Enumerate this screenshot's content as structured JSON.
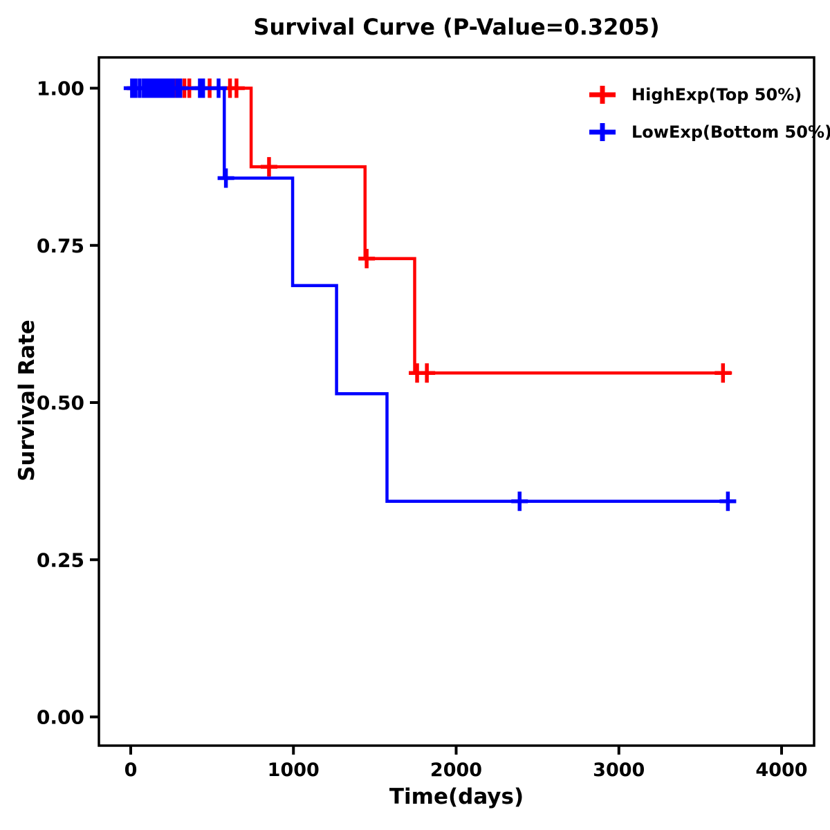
{
  "chart_data": {
    "type": "line",
    "subtype": "kaplan-meier-survival-step",
    "title": "Survival Curve (P-Value=0.3205)",
    "p_value": 0.3205,
    "xlabel": "Time(days)",
    "ylabel": "Survival Rate",
    "xlim": [
      0,
      4000
    ],
    "ylim": [
      0.0,
      1.0
    ],
    "grid": false,
    "background": "#ffffff",
    "axis_color": "#000000",
    "legend_position": "top-right-inside",
    "xticks": [
      {
        "value": 0,
        "label": "0"
      },
      {
        "value": 1000,
        "label": "1000"
      },
      {
        "value": 2000,
        "label": "2000"
      },
      {
        "value": 3000,
        "label": "3000"
      },
      {
        "value": 4000,
        "label": "4000"
      }
    ],
    "yticks": [
      {
        "value": 0.0,
        "label": "0.00"
      },
      {
        "value": 0.25,
        "label": "0.25"
      },
      {
        "value": 0.5,
        "label": "0.50"
      },
      {
        "value": 0.75,
        "label": "0.75"
      },
      {
        "value": 1.0,
        "label": "1.00"
      }
    ],
    "series": [
      {
        "name": "HighExp(Top 50%)",
        "color": "#ff0000",
        "steps": [
          [
            0,
            1.0
          ],
          [
            740,
            0.875
          ],
          [
            1440,
            0.729
          ],
          [
            1745,
            0.547
          ]
        ],
        "end_time": 3695,
        "censor_marks": [
          [
            25,
            1.0
          ],
          [
            90,
            1.0
          ],
          [
            130,
            1.0
          ],
          [
            175,
            1.0
          ],
          [
            210,
            1.0
          ],
          [
            275,
            1.0
          ],
          [
            330,
            1.0
          ],
          [
            360,
            1.0
          ],
          [
            485,
            1.0
          ],
          [
            610,
            1.0
          ],
          [
            650,
            1.0
          ],
          [
            850,
            0.875
          ],
          [
            1450,
            0.729
          ],
          [
            1760,
            0.547
          ],
          [
            1820,
            0.547
          ],
          [
            3640,
            0.547
          ]
        ]
      },
      {
        "name": "LowExp(Bottom 50%)",
        "color": "#0000ff",
        "steps": [
          [
            0,
            1.0
          ],
          [
            575,
            0.857
          ],
          [
            995,
            0.686
          ],
          [
            1265,
            0.514
          ],
          [
            1575,
            0.343
          ]
        ],
        "end_time": 3720,
        "censor_marks": [
          [
            8,
            1.0
          ],
          [
            30,
            1.0
          ],
          [
            55,
            1.0
          ],
          [
            80,
            1.0
          ],
          [
            100,
            1.0
          ],
          [
            120,
            1.0
          ],
          [
            140,
            1.0
          ],
          [
            160,
            1.0
          ],
          [
            180,
            1.0
          ],
          [
            200,
            1.0
          ],
          [
            220,
            1.0
          ],
          [
            240,
            1.0
          ],
          [
            260,
            1.0
          ],
          [
            285,
            1.0
          ],
          [
            305,
            1.0
          ],
          [
            425,
            1.0
          ],
          [
            445,
            1.0
          ],
          [
            540,
            1.0
          ],
          [
            585,
            0.857
          ],
          [
            2390,
            0.343
          ],
          [
            3670,
            0.343
          ]
        ]
      }
    ]
  }
}
